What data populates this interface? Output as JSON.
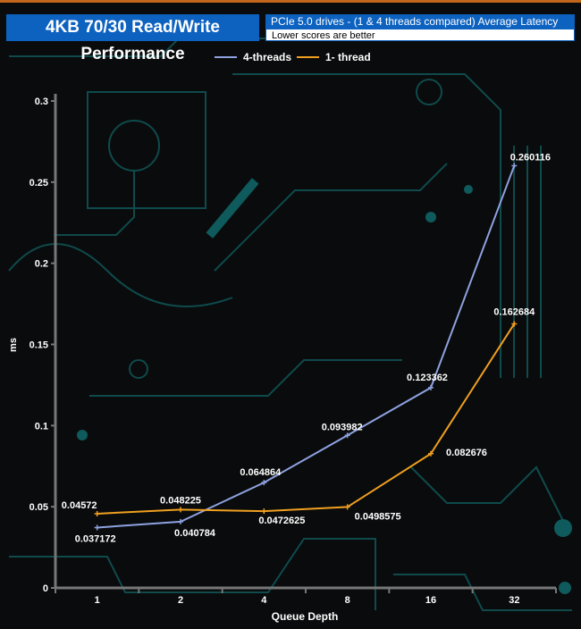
{
  "chart_data": {
    "type": "line",
    "title": "4KB 70/30 Read/Write Performance",
    "subtitle": "PCIe 5.0 drives - (1 & 4 threads compared)  Average Latency",
    "note": "Lower scores are better",
    "xlabel": "Queue Depth",
    "ylabel": "ms",
    "categories": [
      "1",
      "2",
      "4",
      "8",
      "16",
      "32"
    ],
    "ylim": [
      0,
      0.3
    ],
    "yticks": [
      "0",
      "0.05",
      "0.1",
      "0.15",
      "0.2",
      "0.25",
      "0.3"
    ],
    "legend_position": "top",
    "grid": false,
    "series": [
      {
        "name": "4-threads",
        "color": "#8ea2e0",
        "values": [
          0.037172,
          0.040784,
          0.064864,
          0.093982,
          0.123362,
          0.260116
        ],
        "labels": [
          "0.037172",
          "0.040784",
          "0.064864",
          "0.093982",
          "0.123362",
          "0.260116"
        ]
      },
      {
        "name": "1- thread",
        "color": "#f0a020",
        "values": [
          0.04572,
          0.048225,
          0.0472625,
          0.0498575,
          0.082676,
          0.162684
        ],
        "labels": [
          "0.04572",
          "0.048225",
          "0.0472625",
          "0.0498575",
          "0.082676",
          "0.162684"
        ]
      }
    ]
  }
}
